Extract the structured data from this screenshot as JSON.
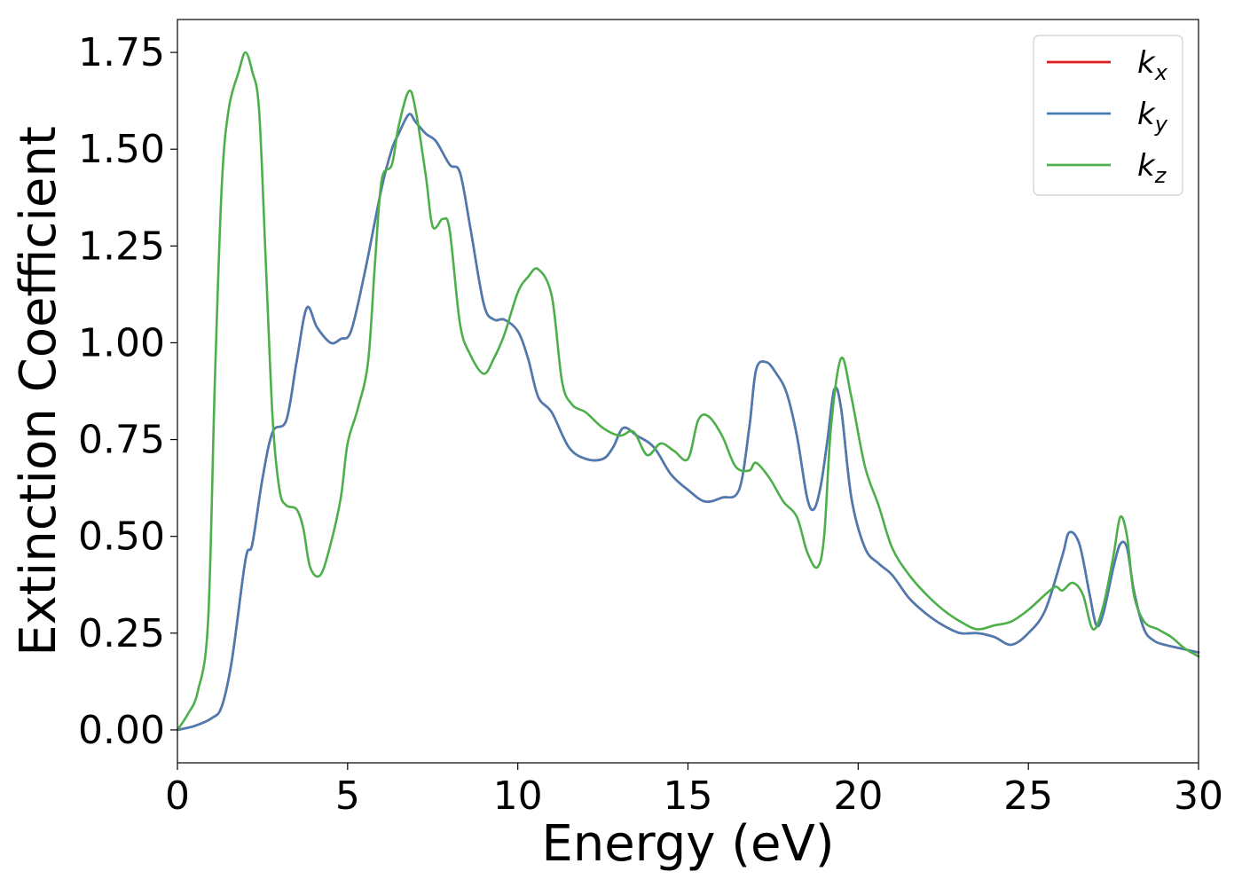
{
  "chart_data": {
    "type": "line",
    "title": "",
    "xlabel": "Energy (eV)",
    "ylabel": "Extinction Coefficient",
    "xlim": [
      0,
      30
    ],
    "ylim": [
      -0.085,
      1.835
    ],
    "xticks": [
      0,
      5,
      10,
      15,
      20,
      25,
      30
    ],
    "xtick_labels": [
      "0",
      "5",
      "10",
      "15",
      "20",
      "25",
      "30"
    ],
    "yticks": [
      0.0,
      0.25,
      0.5,
      0.75,
      1.0,
      1.25,
      1.5,
      1.75
    ],
    "ytick_labels": [
      "0.00",
      "0.25",
      "0.50",
      "0.75",
      "1.00",
      "1.25",
      "1.50",
      "1.75"
    ],
    "grid": false,
    "legend_position": "top-right",
    "series": [
      {
        "name": "k_x",
        "legend_base": "k",
        "legend_sub": "x",
        "color": "#e41a1c",
        "x": [
          0,
          0.5,
          1.0,
          1.3,
          1.6,
          2.0,
          2.2,
          2.5,
          2.8,
          3.2,
          3.5,
          3.8,
          4.1,
          4.5,
          4.8,
          5.1,
          5.5,
          6.0,
          6.3,
          6.5,
          6.8,
          7.0,
          7.3,
          7.6,
          8.0,
          8.3,
          8.6,
          9.0,
          9.3,
          9.6,
          10.0,
          10.3,
          10.6,
          11.0,
          11.5,
          12.0,
          12.5,
          12.8,
          13.1,
          13.5,
          14.0,
          14.5,
          15.0,
          15.5,
          16.0,
          16.5,
          16.8,
          17.0,
          17.3,
          17.6,
          17.9,
          18.2,
          18.5,
          18.7,
          18.9,
          19.1,
          19.3,
          19.5,
          19.8,
          20.2,
          20.6,
          21.0,
          21.5,
          22.0,
          22.5,
          23.0,
          23.5,
          24.0,
          24.5,
          25.0,
          25.5,
          26.0,
          26.2,
          26.5,
          26.8,
          27.0,
          27.2,
          27.5,
          27.7,
          27.9,
          28.1,
          28.4,
          28.7,
          29.0,
          29.5,
          30.0
        ],
        "y": [
          0.0,
          0.01,
          0.03,
          0.06,
          0.18,
          0.44,
          0.48,
          0.65,
          0.77,
          0.8,
          0.95,
          1.09,
          1.04,
          1.0,
          1.01,
          1.03,
          1.18,
          1.4,
          1.5,
          1.54,
          1.59,
          1.57,
          1.54,
          1.52,
          1.46,
          1.44,
          1.3,
          1.1,
          1.06,
          1.06,
          1.03,
          0.96,
          0.86,
          0.82,
          0.73,
          0.7,
          0.7,
          0.73,
          0.78,
          0.76,
          0.73,
          0.66,
          0.62,
          0.59,
          0.6,
          0.62,
          0.78,
          0.93,
          0.95,
          0.92,
          0.87,
          0.76,
          0.6,
          0.57,
          0.63,
          0.75,
          0.88,
          0.83,
          0.6,
          0.47,
          0.43,
          0.4,
          0.34,
          0.3,
          0.27,
          0.25,
          0.25,
          0.24,
          0.22,
          0.25,
          0.31,
          0.45,
          0.51,
          0.48,
          0.35,
          0.27,
          0.3,
          0.42,
          0.48,
          0.47,
          0.36,
          0.26,
          0.23,
          0.22,
          0.21,
          0.2
        ]
      },
      {
        "name": "k_y",
        "legend_base": "k",
        "legend_sub": "y",
        "color": "#4a7cb3",
        "x": [
          0,
          0.5,
          1.0,
          1.3,
          1.6,
          2.0,
          2.2,
          2.5,
          2.8,
          3.2,
          3.5,
          3.8,
          4.1,
          4.5,
          4.8,
          5.1,
          5.5,
          6.0,
          6.3,
          6.5,
          6.8,
          7.0,
          7.3,
          7.6,
          8.0,
          8.3,
          8.6,
          9.0,
          9.3,
          9.6,
          10.0,
          10.3,
          10.6,
          11.0,
          11.5,
          12.0,
          12.5,
          12.8,
          13.1,
          13.5,
          14.0,
          14.5,
          15.0,
          15.5,
          16.0,
          16.5,
          16.8,
          17.0,
          17.3,
          17.6,
          17.9,
          18.2,
          18.5,
          18.7,
          18.9,
          19.1,
          19.3,
          19.5,
          19.8,
          20.2,
          20.6,
          21.0,
          21.5,
          22.0,
          22.5,
          23.0,
          23.5,
          24.0,
          24.5,
          25.0,
          25.5,
          26.0,
          26.2,
          26.5,
          26.8,
          27.0,
          27.2,
          27.5,
          27.7,
          27.9,
          28.1,
          28.4,
          28.7,
          29.0,
          29.5,
          30.0
        ],
        "y": [
          0.0,
          0.01,
          0.03,
          0.06,
          0.18,
          0.44,
          0.48,
          0.65,
          0.77,
          0.8,
          0.95,
          1.09,
          1.04,
          1.0,
          1.01,
          1.03,
          1.18,
          1.4,
          1.5,
          1.54,
          1.59,
          1.57,
          1.54,
          1.52,
          1.46,
          1.44,
          1.3,
          1.1,
          1.06,
          1.06,
          1.03,
          0.96,
          0.86,
          0.82,
          0.73,
          0.7,
          0.7,
          0.73,
          0.78,
          0.76,
          0.73,
          0.66,
          0.62,
          0.59,
          0.6,
          0.62,
          0.78,
          0.93,
          0.95,
          0.92,
          0.87,
          0.76,
          0.6,
          0.57,
          0.63,
          0.75,
          0.88,
          0.83,
          0.6,
          0.47,
          0.43,
          0.4,
          0.34,
          0.3,
          0.27,
          0.25,
          0.25,
          0.24,
          0.22,
          0.25,
          0.31,
          0.45,
          0.51,
          0.48,
          0.35,
          0.27,
          0.3,
          0.42,
          0.48,
          0.47,
          0.36,
          0.26,
          0.23,
          0.22,
          0.21,
          0.2
        ]
      },
      {
        "name": "k_z",
        "legend_base": "k",
        "legend_sub": "z",
        "color": "#4daf4a",
        "x": [
          0,
          0.3,
          0.6,
          0.9,
          1.1,
          1.3,
          1.5,
          1.8,
          2.0,
          2.2,
          2.4,
          2.6,
          2.8,
          3.0,
          3.2,
          3.5,
          3.7,
          3.9,
          4.2,
          4.5,
          4.8,
          5.0,
          5.3,
          5.6,
          5.8,
          6.0,
          6.3,
          6.5,
          6.8,
          7.0,
          7.3,
          7.5,
          7.8,
          8.0,
          8.3,
          8.6,
          9.0,
          9.3,
          9.6,
          10.0,
          10.3,
          10.6,
          11.0,
          11.3,
          11.6,
          12.0,
          12.5,
          13.0,
          13.4,
          13.8,
          14.2,
          14.6,
          15.0,
          15.3,
          15.6,
          16.0,
          16.4,
          16.8,
          17.0,
          17.4,
          17.8,
          18.2,
          18.5,
          18.8,
          19.0,
          19.2,
          19.5,
          19.8,
          20.2,
          20.6,
          21.0,
          21.5,
          22.0,
          22.5,
          23.0,
          23.5,
          24.0,
          24.5,
          25.0,
          25.5,
          25.8,
          26.0,
          26.3,
          26.6,
          26.9,
          27.2,
          27.5,
          27.7,
          27.9,
          28.1,
          28.4,
          28.8,
          29.2,
          29.6,
          30.0
        ],
        "y": [
          0.0,
          0.04,
          0.1,
          0.28,
          0.9,
          1.4,
          1.6,
          1.7,
          1.75,
          1.7,
          1.6,
          1.2,
          0.8,
          0.62,
          0.58,
          0.57,
          0.52,
          0.42,
          0.4,
          0.48,
          0.6,
          0.74,
          0.83,
          0.95,
          1.2,
          1.42,
          1.46,
          1.56,
          1.65,
          1.6,
          1.43,
          1.3,
          1.32,
          1.29,
          1.05,
          0.97,
          0.92,
          0.96,
          1.02,
          1.13,
          1.17,
          1.19,
          1.12,
          0.9,
          0.84,
          0.82,
          0.78,
          0.76,
          0.77,
          0.71,
          0.74,
          0.72,
          0.7,
          0.8,
          0.81,
          0.76,
          0.68,
          0.67,
          0.69,
          0.65,
          0.59,
          0.55,
          0.46,
          0.42,
          0.5,
          0.78,
          0.96,
          0.86,
          0.68,
          0.58,
          0.47,
          0.4,
          0.35,
          0.31,
          0.28,
          0.26,
          0.27,
          0.28,
          0.31,
          0.35,
          0.37,
          0.36,
          0.38,
          0.35,
          0.26,
          0.32,
          0.45,
          0.55,
          0.5,
          0.35,
          0.28,
          0.26,
          0.24,
          0.21,
          0.19
        ]
      }
    ]
  }
}
